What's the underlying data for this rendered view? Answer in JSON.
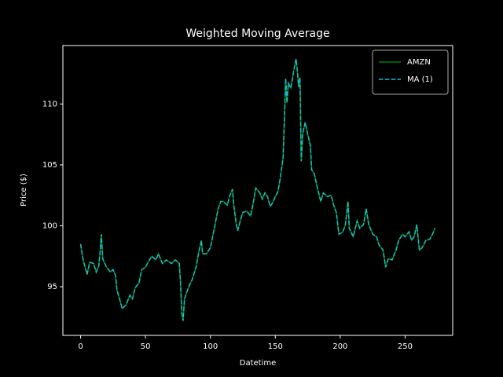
{
  "chart_data": {
    "type": "line",
    "title": "Weighted Moving Average",
    "x_label": "Datetime",
    "y_label": "Price ($)",
    "x": [
      0,
      2,
      5,
      7,
      10,
      12,
      14,
      15,
      16,
      17,
      20,
      23,
      25,
      27,
      28,
      30,
      32,
      35,
      38,
      40,
      42,
      45,
      47,
      50,
      53,
      55,
      58,
      60,
      63,
      66,
      70,
      73,
      76,
      77,
      78,
      79,
      80,
      83,
      86,
      89,
      91,
      93,
      94,
      97,
      100,
      103,
      106,
      108,
      110,
      113,
      115,
      117,
      118,
      120,
      121,
      123,
      125,
      128,
      131,
      133,
      135,
      138,
      140,
      142,
      144,
      146,
      148,
      150,
      152,
      154,
      156,
      157,
      158,
      159,
      160,
      162,
      164,
      166,
      167,
      168,
      169,
      170,
      171,
      173,
      175,
      177,
      178,
      180,
      182,
      185,
      187,
      190,
      193,
      195,
      197,
      199,
      202,
      204,
      206,
      207,
      210,
      213,
      215,
      218,
      220,
      222,
      225,
      228,
      230,
      233,
      235,
      237,
      240,
      243,
      245,
      248,
      250,
      253,
      255,
      257,
      259,
      261,
      263,
      266,
      269,
      271,
      273
    ],
    "series": [
      {
        "name": "AMZN",
        "color": "#008000",
        "dash": false,
        "values": [
          98.5,
          97.2,
          96.0,
          97.0,
          96.9,
          96.2,
          96.7,
          97.8,
          99.3,
          97.3,
          96.6,
          96.2,
          96.4,
          95.9,
          94.7,
          94.0,
          93.2,
          93.5,
          94.3,
          94.0,
          94.9,
          95.3,
          96.4,
          96.6,
          97.2,
          97.5,
          97.2,
          97.7,
          96.9,
          97.2,
          96.9,
          97.2,
          96.9,
          95.3,
          92.8,
          92.2,
          94.0,
          94.9,
          95.6,
          96.6,
          97.8,
          98.8,
          97.7,
          97.7,
          98.2,
          99.8,
          101.4,
          102.0,
          102.0,
          101.7,
          102.5,
          103.0,
          101.7,
          100.1,
          99.6,
          100.4,
          101.1,
          101.2,
          100.8,
          101.9,
          103.1,
          102.7,
          102.2,
          102.7,
          102.4,
          101.6,
          101.9,
          102.4,
          102.8,
          104.0,
          105.6,
          108.8,
          112.1,
          110.1,
          111.7,
          111.3,
          112.6,
          113.7,
          112.7,
          111.4,
          112.2,
          105.3,
          107.5,
          108.5,
          107.5,
          106.6,
          104.6,
          104.3,
          103.3,
          102.0,
          102.7,
          102.4,
          102.5,
          101.7,
          101.1,
          99.3,
          99.5,
          100.1,
          102.0,
          99.8,
          99.1,
          100.4,
          99.8,
          100.1,
          101.4,
          100.1,
          99.3,
          99.1,
          98.4,
          98.0,
          96.6,
          97.3,
          97.2,
          98.0,
          98.8,
          99.3,
          99.1,
          99.5,
          98.8,
          99.1,
          100.1,
          98.0,
          98.2,
          98.8,
          98.9,
          99.3,
          99.8
        ]
      },
      {
        "name": "MA (1)",
        "color": "#17becf",
        "dash": true,
        "values": [
          98.5,
          97.2,
          96.0,
          97.0,
          96.9,
          96.2,
          96.7,
          97.8,
          99.3,
          97.3,
          96.6,
          96.2,
          96.4,
          95.9,
          94.7,
          94.0,
          93.2,
          93.5,
          94.3,
          94.0,
          94.9,
          95.3,
          96.4,
          96.6,
          97.2,
          97.5,
          97.2,
          97.7,
          96.9,
          97.2,
          96.9,
          97.2,
          96.9,
          95.3,
          92.8,
          92.2,
          94.0,
          94.9,
          95.6,
          96.6,
          97.8,
          98.8,
          97.7,
          97.7,
          98.2,
          99.8,
          101.4,
          102.0,
          102.0,
          101.7,
          102.5,
          103.0,
          101.7,
          100.1,
          99.6,
          100.4,
          101.1,
          101.2,
          100.8,
          101.9,
          103.1,
          102.7,
          102.2,
          102.7,
          102.4,
          101.6,
          101.9,
          102.4,
          102.8,
          104.0,
          105.6,
          108.8,
          112.1,
          110.1,
          111.7,
          111.3,
          112.6,
          113.7,
          112.7,
          111.4,
          112.2,
          105.3,
          107.5,
          108.5,
          107.5,
          106.6,
          104.6,
          104.3,
          103.3,
          102.0,
          102.7,
          102.4,
          102.5,
          101.7,
          101.1,
          99.3,
          99.5,
          100.1,
          102.0,
          99.8,
          99.1,
          100.4,
          99.8,
          100.1,
          101.4,
          100.1,
          99.3,
          99.1,
          98.4,
          98.0,
          96.6,
          97.3,
          97.2,
          98.0,
          98.8,
          99.3,
          99.1,
          99.5,
          98.8,
          99.1,
          100.1,
          98.0,
          98.2,
          98.8,
          98.9,
          99.3,
          99.8
        ]
      }
    ],
    "xlim": [
      -13.65,
      286.65
    ],
    "ylim": [
      91.0,
      114.8
    ],
    "xticks": [
      0,
      50,
      100,
      150,
      200,
      250
    ],
    "yticks": [
      95,
      100,
      105,
      110
    ],
    "legend": "upper right"
  }
}
